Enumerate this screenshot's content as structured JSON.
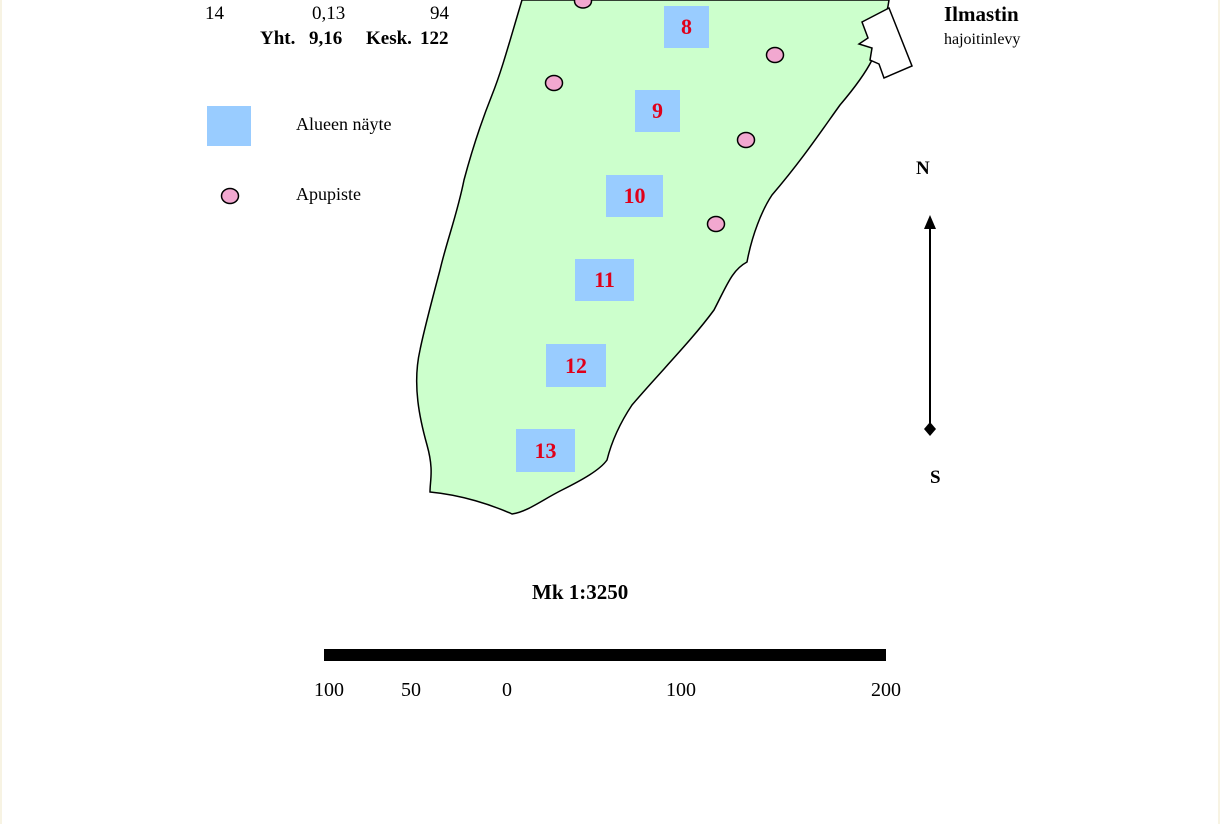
{
  "table": {
    "row": {
      "point": "14",
      "value1": "0,13",
      "value2": "94"
    },
    "totals": {
      "sum_label": "Yht.",
      "sum_value": "9,16",
      "mean_label": "Kesk.",
      "mean_value": "122"
    }
  },
  "legend": {
    "sample_label": "Alueen näyte",
    "helper_label": "Apupiste",
    "sample_color": "#99ccff",
    "helper_color": "#f2a8d0"
  },
  "map": {
    "land_color": "#ccffcc",
    "sample_points": [
      "8",
      "9",
      "10",
      "11",
      "12",
      "13"
    ],
    "diffuser_title": "Ilmastin",
    "diffuser_subtitle": "hajoitinlevy"
  },
  "compass": {
    "north": "N",
    "south": "S"
  },
  "scale": {
    "title": "Mk 1:3250",
    "ticks": [
      "100",
      "50",
      "0",
      "100",
      "200"
    ]
  }
}
